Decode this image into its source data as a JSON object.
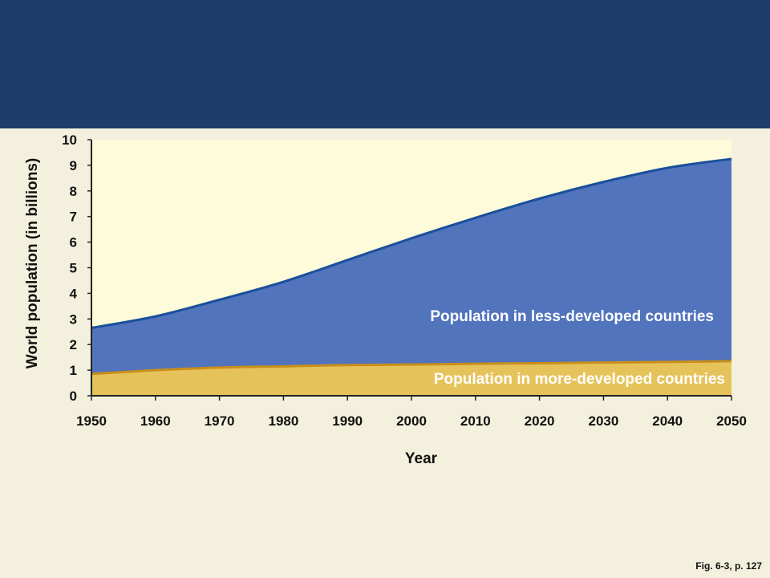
{
  "caption": "Fig. 6-3, p. 127",
  "colors": {
    "header": "#1f3d6a",
    "page_background": "#f3f0dd",
    "plot_background": "#fdfbd9",
    "less_developed_fill": "#5274bd",
    "less_developed_line": "#1a4f9c",
    "more_developed_fill": "#e6c35a",
    "more_developed_line": "#c98f1a"
  },
  "chart_data": {
    "type": "area",
    "stacked": true,
    "xlabel": "Year",
    "ylabel": "World population (in billions)",
    "x": [
      1950,
      1960,
      1970,
      1980,
      1990,
      2000,
      2010,
      2020,
      2030,
      2040,
      2050
    ],
    "xticks": [
      1950,
      1960,
      1970,
      1980,
      1990,
      2000,
      2010,
      2020,
      2030,
      2040,
      2050
    ],
    "yticks": [
      0,
      1,
      2,
      3,
      4,
      5,
      6,
      7,
      8,
      9,
      10
    ],
    "xlim": [
      1950,
      2050
    ],
    "ylim": [
      0,
      10
    ],
    "series": [
      {
        "name": "Population in more-developed countries",
        "values": [
          0.85,
          1.0,
          1.1,
          1.15,
          1.2,
          1.22,
          1.25,
          1.27,
          1.3,
          1.32,
          1.35
        ]
      },
      {
        "name": "Population in less-developed countries",
        "totals": [
          2.65,
          3.1,
          3.75,
          4.45,
          5.3,
          6.15,
          6.95,
          7.7,
          8.35,
          8.9,
          9.25
        ]
      }
    ]
  }
}
